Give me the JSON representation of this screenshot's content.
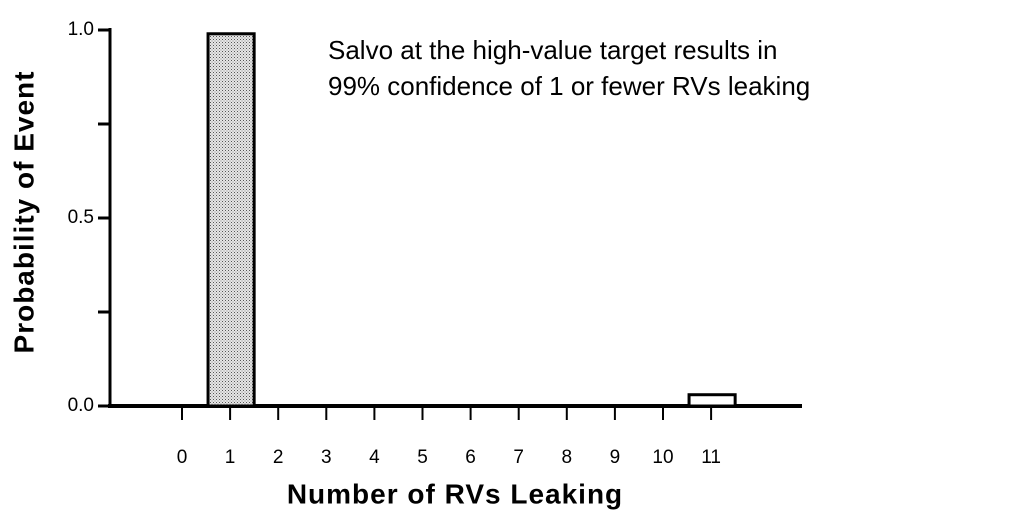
{
  "chart_data": {
    "type": "bar",
    "annotation": [
      "Salvo at the high-value target results in",
      "99% confidence of 1 or fewer RVs leaking"
    ],
    "x_label": "Number  of  RVs  Leaking",
    "y_label": "Probability  of  Event",
    "categories": [
      "0",
      "1",
      "2",
      "3",
      "4",
      "5",
      "6",
      "7",
      "8",
      "9",
      "10",
      "11"
    ],
    "values": [
      0,
      0.99,
      0,
      0,
      0,
      0,
      0,
      0,
      0,
      0,
      0,
      0.03
    ],
    "color": "#c4c4c4",
    "ylim": [
      0,
      1
    ],
    "yticks": [
      {
        "value": 0,
        "label": "0.0"
      },
      {
        "value": 0.5,
        "label": "0.5"
      },
      {
        "value": 1,
        "label": "1.0"
      }
    ],
    "yminor_ticks": [
      0.25,
      0.75
    ],
    "grid": false
  }
}
